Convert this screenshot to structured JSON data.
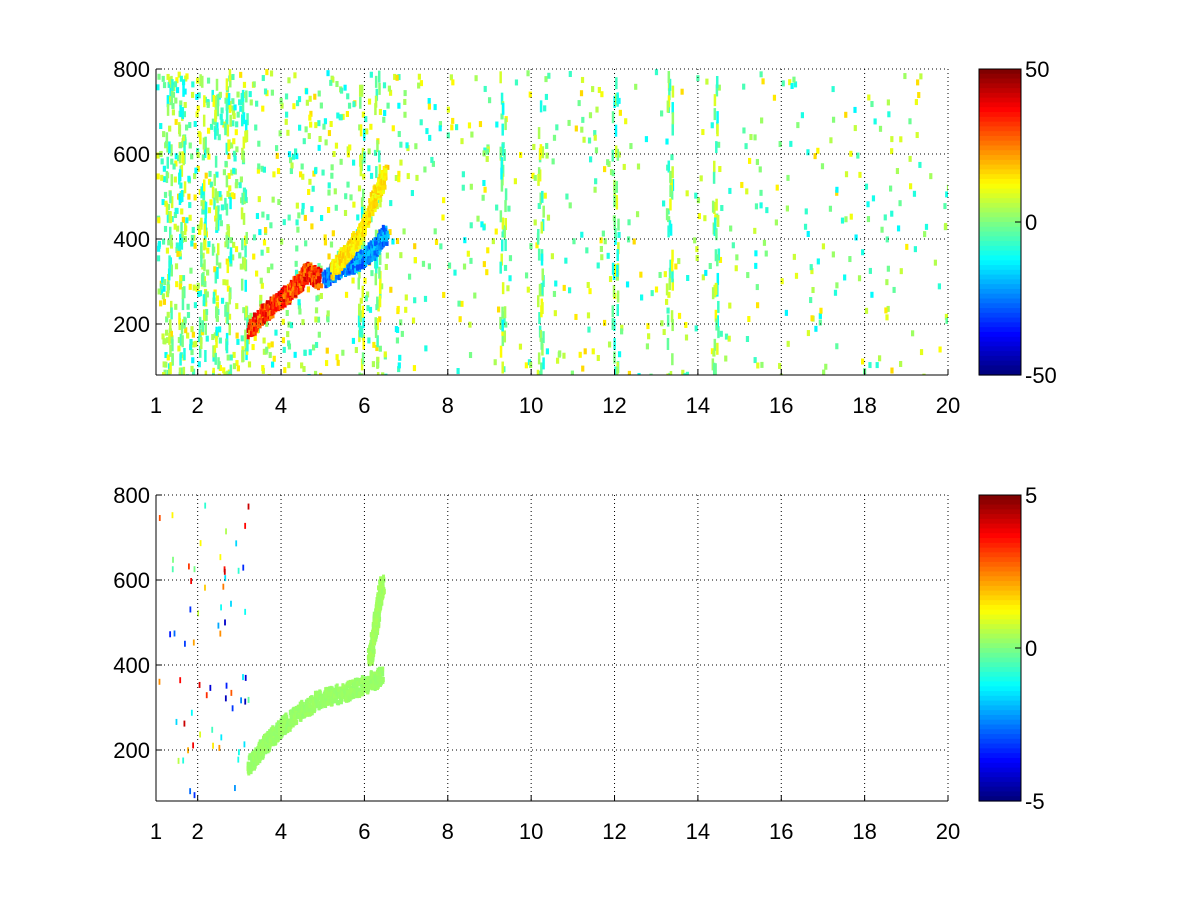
{
  "chart_data": [
    {
      "type": "heatmap",
      "title": "",
      "xlabel": "",
      "ylabel": "",
      "xlim": [
        1,
        20
      ],
      "ylim": [
        80,
        800
      ],
      "x_ticks": [
        1,
        2,
        4,
        6,
        8,
        10,
        12,
        14,
        16,
        18,
        20
      ],
      "y_ticks": [
        200,
        400,
        600,
        800
      ],
      "grid": true,
      "colormap": "jet",
      "colorbar": {
        "range": [
          -50,
          50
        ],
        "ticks": [
          50,
          0,
          -50
        ]
      },
      "features": [
        {
          "kind": "ridge",
          "x": [
            3.2,
            3.6,
            4.0,
            4.4,
            4.6,
            4.9
          ],
          "y": [
            190,
            235,
            265,
            300,
            330,
            310
          ],
          "value": 40
        },
        {
          "kind": "ridge",
          "x": [
            5.0,
            5.4,
            5.8,
            6.2,
            6.5
          ],
          "y": [
            310,
            340,
            350,
            380,
            420
          ],
          "value": -30
        },
        {
          "kind": "ridge",
          "x": [
            5.2,
            5.6,
            5.9,
            6.2,
            6.5
          ],
          "y": [
            330,
            380,
            420,
            500,
            560
          ],
          "value": 18
        }
      ]
    },
    {
      "type": "heatmap",
      "title": "",
      "xlabel": "",
      "ylabel": "",
      "xlim": [
        1,
        20
      ],
      "ylim": [
        80,
        800
      ],
      "x_ticks": [
        1,
        2,
        4,
        6,
        8,
        10,
        12,
        14,
        16,
        18,
        20
      ],
      "y_ticks": [
        200,
        400,
        600,
        800
      ],
      "grid": true,
      "colormap": "jet",
      "colorbar": {
        "range": [
          -5,
          5
        ],
        "ticks": [
          5,
          0,
          -5
        ]
      },
      "features": [
        {
          "kind": "ridge",
          "x": [
            3.2,
            3.6,
            4.0,
            4.5,
            5.0,
            5.5,
            6.0,
            6.4
          ],
          "y": [
            170,
            220,
            260,
            300,
            330,
            340,
            360,
            380
          ],
          "value": 0.3
        },
        {
          "kind": "ridge",
          "x": [
            6.1,
            6.2,
            6.3,
            6.4
          ],
          "y": [
            420,
            480,
            540,
            600
          ],
          "value": 0.4
        }
      ]
    }
  ]
}
